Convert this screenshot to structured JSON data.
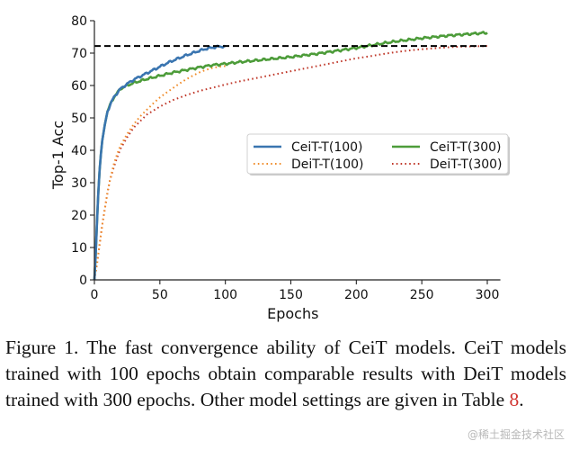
{
  "chart_data": {
    "type": "line",
    "title": "",
    "xlabel": "Epochs",
    "ylabel": "Top-1 Acc",
    "xlim": [
      0,
      310
    ],
    "ylim": [
      0,
      80
    ],
    "xticks": [
      0,
      50,
      100,
      150,
      200,
      250,
      300
    ],
    "yticks": [
      0,
      10,
      20,
      30,
      40,
      50,
      60,
      70,
      80
    ],
    "grid": false,
    "legend_position": "center-right",
    "reference_line": {
      "y": 72.2,
      "x_range": [
        0,
        300
      ],
      "style": "dashed",
      "color": "#000000"
    },
    "series": [
      {
        "name": "CeiT-T(100)",
        "color": "#3a75b0",
        "style": "solid",
        "x": [
          0,
          1,
          2,
          3,
          4,
          5,
          6,
          8,
          10,
          12,
          15,
          18,
          20,
          25,
          30,
          35,
          40,
          45,
          50,
          55,
          60,
          65,
          70,
          75,
          80,
          85,
          90,
          95,
          100
        ],
        "y": [
          0,
          8,
          18,
          27,
          34,
          39,
          43,
          48,
          52,
          54,
          56.5,
          58,
          59,
          60.5,
          61.8,
          62.8,
          63.8,
          64.8,
          65.8,
          66.8,
          67.7,
          68.5,
          69.3,
          70.0,
          70.7,
          71.3,
          71.7,
          72.0,
          72.1
        ]
      },
      {
        "name": "DeiT-T(100)",
        "color": "#f08c2a",
        "style": "dotted",
        "x": [
          0,
          2,
          4,
          6,
          8,
          10,
          12,
          15,
          18,
          20,
          25,
          30,
          35,
          40,
          45,
          50,
          55,
          60,
          65,
          70,
          75,
          80,
          85,
          90,
          95,
          100
        ],
        "y": [
          0,
          5,
          11,
          17,
          22,
          27,
          31,
          36,
          39.5,
          41.5,
          45,
          48,
          50.5,
          52.5,
          54.5,
          56.3,
          57.8,
          59.2,
          60.6,
          61.9,
          63.0,
          64.0,
          64.8,
          65.4,
          65.8,
          66.0
        ]
      },
      {
        "name": "CeiT-T(300)",
        "color": "#4d9c3a",
        "style": "solid",
        "x": [
          0,
          1,
          2,
          3,
          4,
          5,
          6,
          8,
          10,
          12,
          15,
          18,
          20,
          25,
          30,
          40,
          50,
          60,
          70,
          80,
          90,
          100,
          110,
          120,
          130,
          140,
          150,
          160,
          170,
          180,
          190,
          200,
          210,
          220,
          230,
          240,
          250,
          260,
          270,
          280,
          290,
          300
        ],
        "y": [
          0,
          8,
          18,
          27,
          34,
          39,
          43,
          48,
          52,
          54,
          56.5,
          58,
          59,
          60,
          60.8,
          62.0,
          63.0,
          64.0,
          64.8,
          65.6,
          66.3,
          66.7,
          67.2,
          67.6,
          68.0,
          68.4,
          68.8,
          69.3,
          69.8,
          70.4,
          71.0,
          71.6,
          72.3,
          73.0,
          73.6,
          74.1,
          74.6,
          75.0,
          75.4,
          75.7,
          76.0,
          76.3
        ]
      },
      {
        "name": "DeiT-T(300)",
        "color": "#c0392b",
        "style": "dotted",
        "x": [
          0,
          2,
          4,
          6,
          8,
          10,
          12,
          15,
          18,
          20,
          25,
          30,
          40,
          50,
          60,
          70,
          80,
          90,
          100,
          110,
          120,
          130,
          140,
          150,
          160,
          170,
          180,
          190,
          200,
          210,
          220,
          230,
          240,
          250,
          260,
          270,
          280,
          290,
          300
        ],
        "y": [
          0,
          5,
          11,
          17,
          22,
          27,
          31,
          35,
          38.5,
          40.5,
          44,
          47,
          51,
          53.5,
          55.5,
          57.0,
          58.3,
          59.3,
          60.3,
          61.2,
          62.0,
          62.8,
          63.6,
          64.4,
          65.2,
          66.0,
          66.8,
          67.6,
          68.4,
          69.0,
          69.7,
          70.3,
          70.8,
          71.2,
          71.5,
          71.8,
          72.0,
          72.1,
          72.2
        ]
      }
    ]
  },
  "caption": {
    "text": "Figure 1. The fast convergence ability of CeiT models. CeiT models trained with 100 epochs obtain comparable results with DeiT models trained with 300 epochs. Other model settings are given in Table ",
    "ref": "8",
    "end": "."
  },
  "watermark": "@稀土掘金技术社区"
}
